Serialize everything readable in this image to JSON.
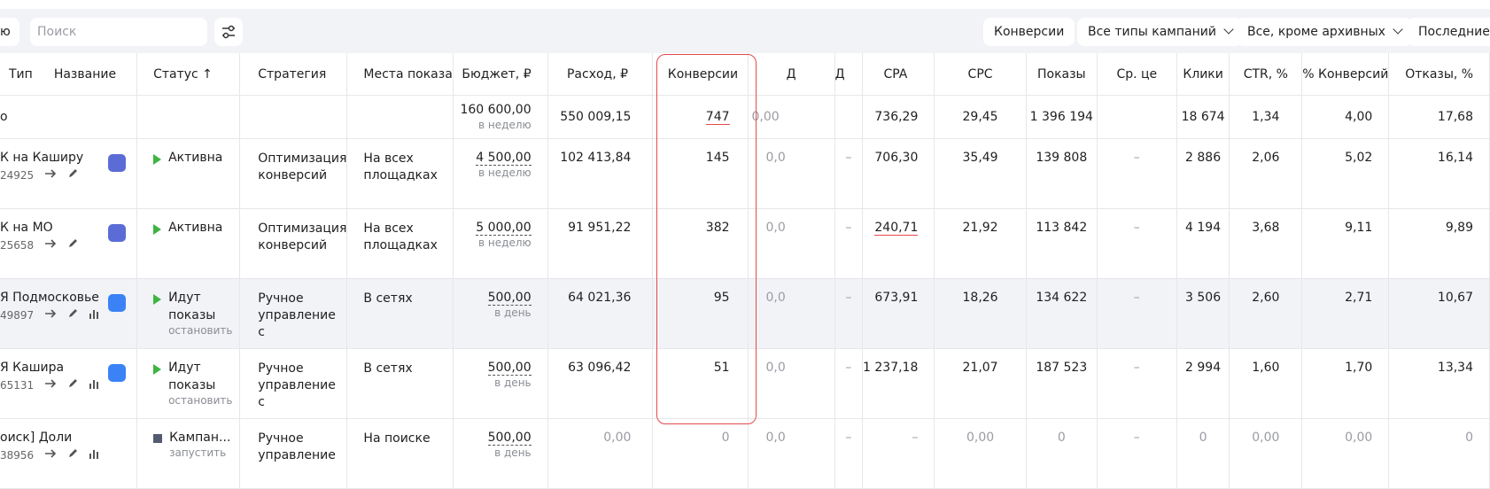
{
  "toolbar": {
    "left_cut_text": "ю",
    "search_placeholder": "Поиск",
    "pills": [
      "Конверсии",
      "Все типы кампаний",
      "Все, кроме архивных",
      "Последние"
    ]
  },
  "columns": [
    "Тип",
    "Название",
    "Статус ↑",
    "Стратегия",
    "Места показа",
    "Бюджет, ₽",
    "Расход, ₽",
    "Конверсии",
    "Д",
    "Д",
    "CPA",
    "CPC",
    "Показы",
    "Ср. це",
    "Клики",
    "CTR, %",
    "% Конверсий",
    "Отказы, %"
  ],
  "totals": {
    "name": "о",
    "budget": "160 600,00",
    "budget_period": "в неделю",
    "spend": "550 009,15",
    "conversions": "747",
    "d1": "0,00",
    "cpa": "736,29",
    "cpc": "29,45",
    "shows": "1 396 194",
    "clicks": "18 674",
    "ctr": "1,34",
    "conv_pct": "4,00",
    "bounce": "17,68"
  },
  "rows": [
    {
      "name": "К на Каширу",
      "id": "24925",
      "status": "Активна",
      "status_sub": "",
      "strategy1": "Оптимизация",
      "strategy2": "конверсий",
      "strategy3": "",
      "places1": "На всех",
      "places2": "площадках",
      "budget": "4 500,00",
      "period": "в неделю",
      "spend": "102 413,84",
      "conversions": "145",
      "d1": "0,0",
      "d2": "–",
      "cpa": "706,30",
      "cpc": "35,49",
      "shows": "139 808",
      "avg": "–",
      "clicks": "2 886",
      "ctr": "2,06",
      "conv_pct": "5,02",
      "bounce": "16,14"
    },
    {
      "name": "К на МО",
      "id": "25658",
      "status": "Активна",
      "status_sub": "",
      "strategy1": "Оптимизация",
      "strategy2": "конверсий",
      "strategy3": "",
      "places1": "На всех",
      "places2": "площадках",
      "budget": "5 000,00",
      "period": "в неделю",
      "spend": "91 951,22",
      "conversions": "382",
      "d1": "0,0",
      "d2": "–",
      "cpa": "240,71",
      "cpc": "21,92",
      "shows": "113 842",
      "avg": "–",
      "clicks": "4 194",
      "ctr": "3,68",
      "conv_pct": "9,11",
      "bounce": "9,89"
    },
    {
      "name": "Я Подмосковье",
      "id": "49897",
      "status": "Идут",
      "status2": "показы",
      "status_sub": "остановить",
      "strategy1": "Ручное",
      "strategy2": "управление",
      "strategy3": "с",
      "places1": "В сетях",
      "places2": "",
      "budget": "500,00",
      "period": "в день",
      "spend": "64 021,36",
      "conversions": "95",
      "d1": "0,0",
      "d2": "–",
      "cpa": "673,91",
      "cpc": "18,26",
      "shows": "134 622",
      "avg": "–",
      "clicks": "3 506",
      "ctr": "2,60",
      "conv_pct": "2,71",
      "bounce": "10,67"
    },
    {
      "name": "Я Кашира",
      "id": "65131",
      "status": "Идут",
      "status2": "показы",
      "status_sub": "остановить",
      "strategy1": "Ручное",
      "strategy2": "управление",
      "strategy3": "с",
      "places1": "В сетях",
      "places2": "",
      "budget": "500,00",
      "period": "в день",
      "spend": "63 096,42",
      "conversions": "51",
      "d1": "0,0",
      "d2": "–",
      "cpa": "1 237,18",
      "cpc": "21,07",
      "shows": "187 523",
      "avg": "–",
      "clicks": "2 994",
      "ctr": "1,60",
      "conv_pct": "1,70",
      "bounce": "13,34"
    },
    {
      "name": "оиск] Доли",
      "id": "38956",
      "status": "Кампан...",
      "status_sub": "запустить",
      "strategy1": "Ручное",
      "strategy2": "управление",
      "strategy3": "",
      "places1": "На поиске",
      "places2": "",
      "budget": "500,00",
      "period": "в день",
      "spend": "0,00",
      "conversions": "0",
      "d1": "0,0",
      "d2": "–",
      "cpa": "–",
      "cpc": "0,00",
      "shows": "0",
      "avg": "–",
      "clicks": "0",
      "ctr": "0,00",
      "conv_pct": "0,00",
      "bounce": "0"
    }
  ]
}
